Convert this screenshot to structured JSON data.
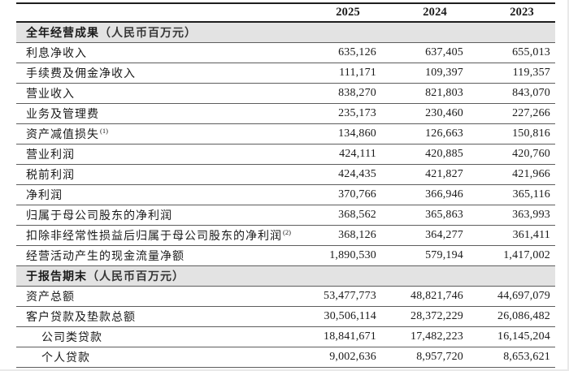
{
  "table": {
    "years": [
      "2025",
      "2024",
      "2023"
    ],
    "sections": [
      {
        "title": "全年经营成果",
        "unit": "（人民币百万元）",
        "rows": [
          {
            "label": "利息净收入",
            "sup": "",
            "indent": false,
            "values": [
              "635,126",
              "637,405",
              "655,013"
            ]
          },
          {
            "label": "手续费及佣金净收入",
            "sup": "",
            "indent": false,
            "values": [
              "111,171",
              "109,397",
              "119,357"
            ]
          },
          {
            "label": "营业收入",
            "sup": "",
            "indent": false,
            "values": [
              "838,270",
              "821,803",
              "843,070"
            ]
          },
          {
            "label": "业务及管理费",
            "sup": "",
            "indent": false,
            "values": [
              "235,173",
              "230,460",
              "227,266"
            ]
          },
          {
            "label": "资产减值损失",
            "sup": "(1)",
            "indent": false,
            "values": [
              "134,860",
              "126,663",
              "150,816"
            ]
          },
          {
            "label": "营业利润",
            "sup": "",
            "indent": false,
            "values": [
              "424,111",
              "420,885",
              "420,760"
            ]
          },
          {
            "label": "税前利润",
            "sup": "",
            "indent": false,
            "values": [
              "424,435",
              "421,827",
              "421,966"
            ]
          },
          {
            "label": "净利润",
            "sup": "",
            "indent": false,
            "values": [
              "370,766",
              "366,946",
              "365,116"
            ]
          },
          {
            "label": "归属于母公司股东的净利润",
            "sup": "",
            "indent": false,
            "values": [
              "368,562",
              "365,863",
              "363,993"
            ]
          },
          {
            "label": "扣除非经常性损益后归属于母公司股东的净利润",
            "sup": "(2)",
            "indent": false,
            "values": [
              "368,126",
              "364,277",
              "361,411"
            ]
          },
          {
            "label": "经营活动产生的现金流量净额",
            "sup": "",
            "indent": false,
            "values": [
              "1,890,530",
              "579,194",
              "1,417,002"
            ]
          }
        ]
      },
      {
        "title": "于报告期末",
        "unit": "（人民币百万元）",
        "rows": [
          {
            "label": "资产总额",
            "sup": "",
            "indent": false,
            "values": [
              "53,477,773",
              "48,821,746",
              "44,697,079"
            ]
          },
          {
            "label": "客户贷款及垫款总额",
            "sup": "",
            "indent": false,
            "values": [
              "30,506,114",
              "28,372,229",
              "26,086,482"
            ]
          },
          {
            "label": "公司类贷款",
            "sup": "",
            "indent": true,
            "values": [
              "18,841,671",
              "17,482,223",
              "16,145,204"
            ]
          },
          {
            "label": "个人贷款",
            "sup": "",
            "indent": true,
            "values": [
              "9,002,636",
              "8,957,720",
              "8,653,621"
            ]
          }
        ]
      }
    ]
  },
  "colors": {
    "text": "#1a1a1a",
    "band_background": "#e3e3e3",
    "rule_heavy": "#1e1e1e",
    "rule_light": "#5d5d5d"
  }
}
